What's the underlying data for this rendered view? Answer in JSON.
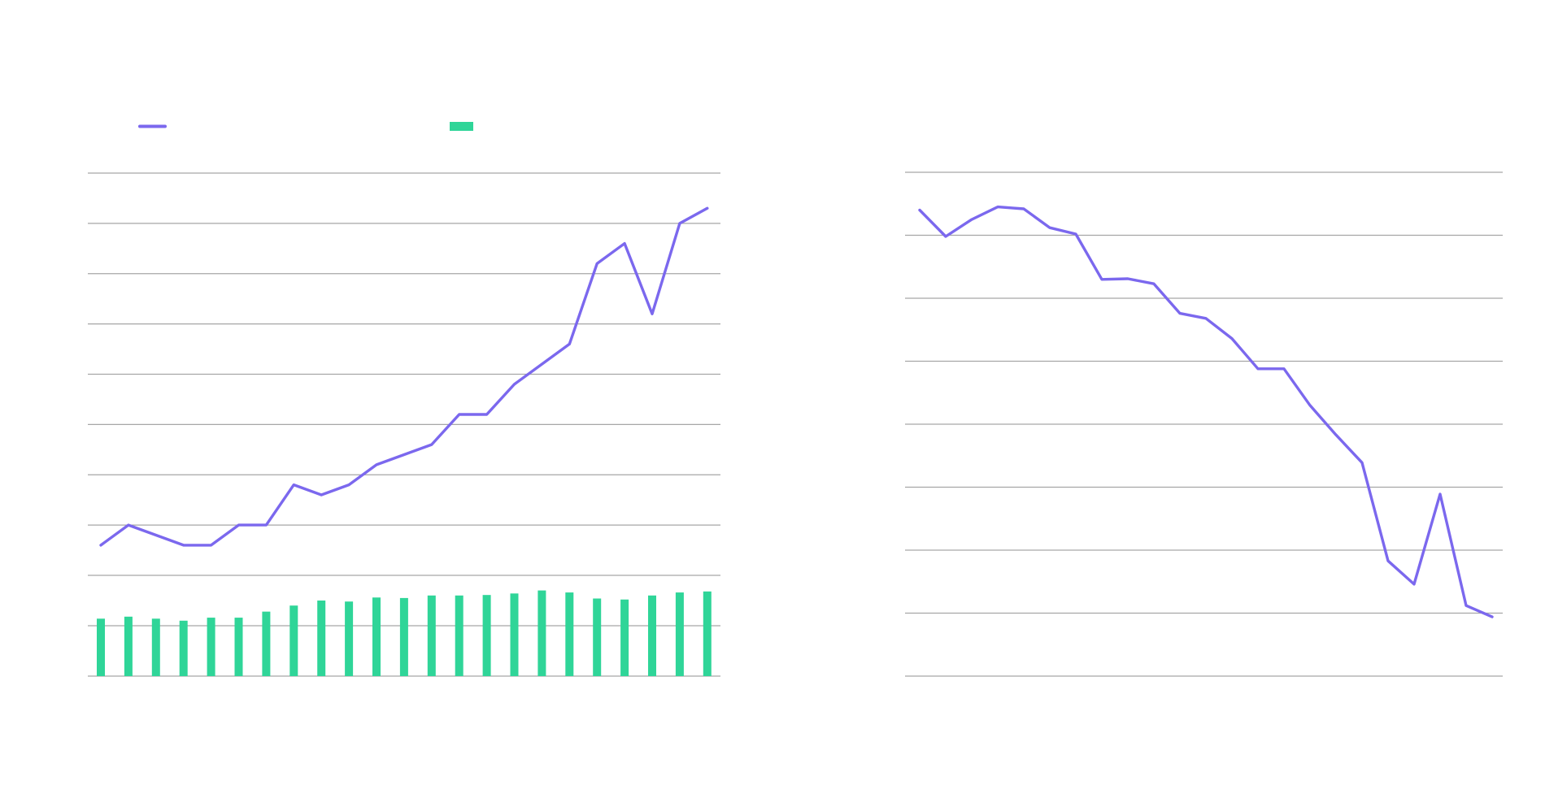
{
  "colors": {
    "line": "#7b68ee",
    "bar": "#2fd598",
    "grid": "#a6a6a6",
    "background": "#ffffff"
  },
  "chart_data": [
    {
      "type": "line+bar",
      "title": "",
      "legend": {
        "placement": "top",
        "entries": [
          {
            "name": "",
            "marker": "line",
            "color": "#7b68ee"
          },
          {
            "name": "",
            "marker": "bar",
            "color": "#2fd598"
          }
        ]
      },
      "grid": true,
      "line_panel": {
        "ylim": [
          0,
          8
        ],
        "gridlines": 9,
        "series": [
          {
            "name": "",
            "values": [
              0.6,
              1.0,
              0.8,
              0.6,
              0.6,
              1.0,
              1.0,
              1.8,
              1.6,
              1.8,
              2.2,
              2.4,
              2.6,
              3.2,
              3.2,
              3.8,
              4.2,
              4.6,
              6.2,
              6.6,
              5.2,
              7.0,
              7.3
            ]
          }
        ]
      },
      "bar_panel": {
        "ylim": [
          0,
          2
        ],
        "gridlines": 3,
        "series": [
          {
            "name": "",
            "values": [
              1.14,
              1.18,
              1.14,
              1.1,
              1.16,
              1.16,
              1.28,
              1.4,
              1.5,
              1.48,
              1.56,
              1.55,
              1.6,
              1.6,
              1.61,
              1.64,
              1.7,
              1.66,
              1.54,
              1.52,
              1.6,
              1.66,
              1.68
            ]
          }
        ]
      }
    },
    {
      "type": "line",
      "title": "",
      "grid": true,
      "ylim": [
        0,
        8
      ],
      "gridlines": 9,
      "series": [
        {
          "name": "",
          "values": [
            7.4,
            6.98,
            7.25,
            7.45,
            7.42,
            7.12,
            7.02,
            6.3,
            6.31,
            6.23,
            5.76,
            5.68,
            5.36,
            4.88,
            4.88,
            4.3,
            3.83,
            3.39,
            1.83,
            1.46,
            2.89,
            1.12,
            0.94
          ]
        }
      ]
    }
  ]
}
